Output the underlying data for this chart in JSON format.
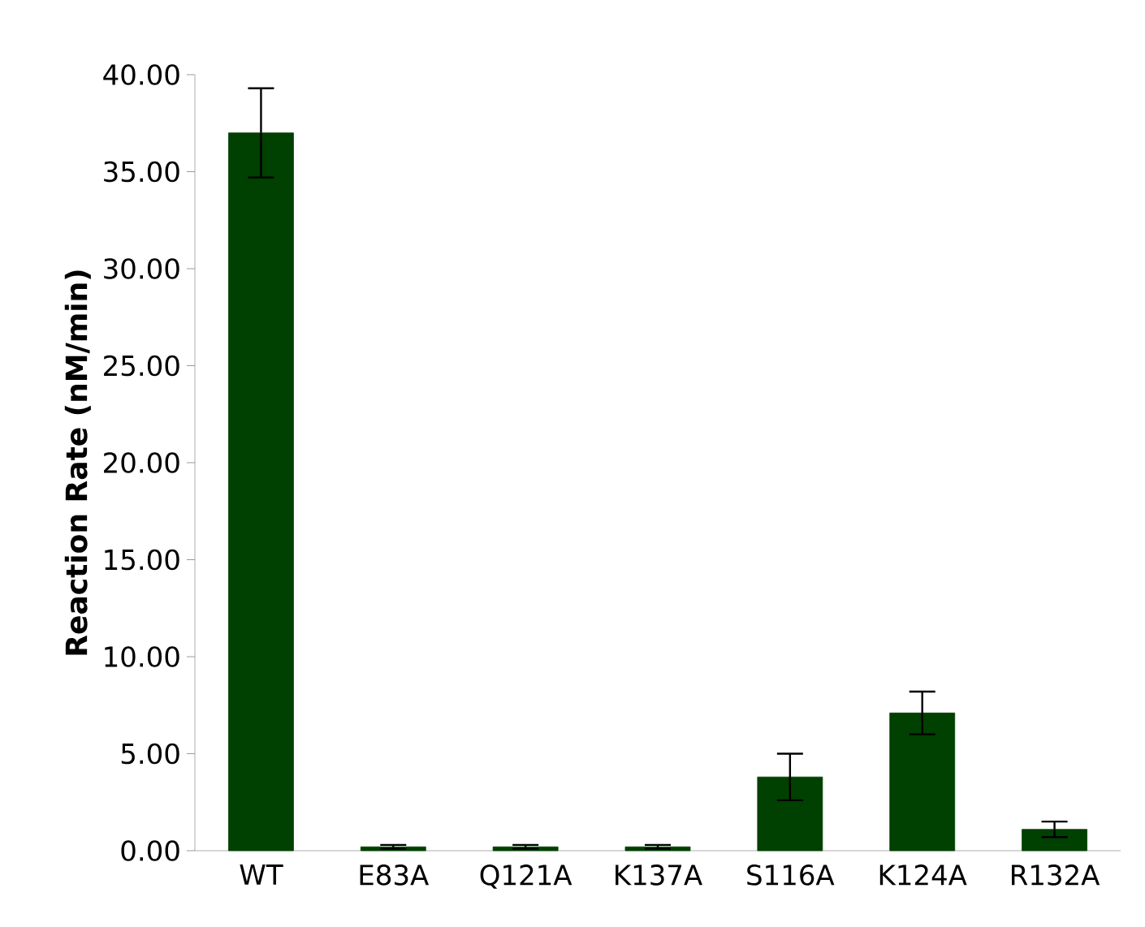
{
  "chart_data": {
    "type": "bar",
    "ylabel": "Reaction Rate (nM/min)",
    "categories": [
      "WT",
      "E83A",
      "Q121A",
      "K137A",
      "S116A",
      "K124A",
      "R132A"
    ],
    "values": [
      37.0,
      0.2,
      0.2,
      0.2,
      3.8,
      7.1,
      1.1
    ],
    "errors": [
      2.3,
      0.1,
      0.1,
      0.1,
      1.2,
      1.1,
      0.4
    ],
    "color": "#004000",
    "ylim": [
      0,
      40
    ],
    "yticks": [
      {
        "value": 0,
        "label": "0.00"
      },
      {
        "value": 5,
        "label": "5.00"
      },
      {
        "value": 10,
        "label": "10.00"
      },
      {
        "value": 15,
        "label": "15.00"
      },
      {
        "value": 20,
        "label": "20.00"
      },
      {
        "value": 25,
        "label": "25.00"
      },
      {
        "value": 30,
        "label": "30.00"
      },
      {
        "value": 35,
        "label": "35.00"
      },
      {
        "value": 40,
        "label": "40.00"
      }
    ],
    "grid": false
  }
}
